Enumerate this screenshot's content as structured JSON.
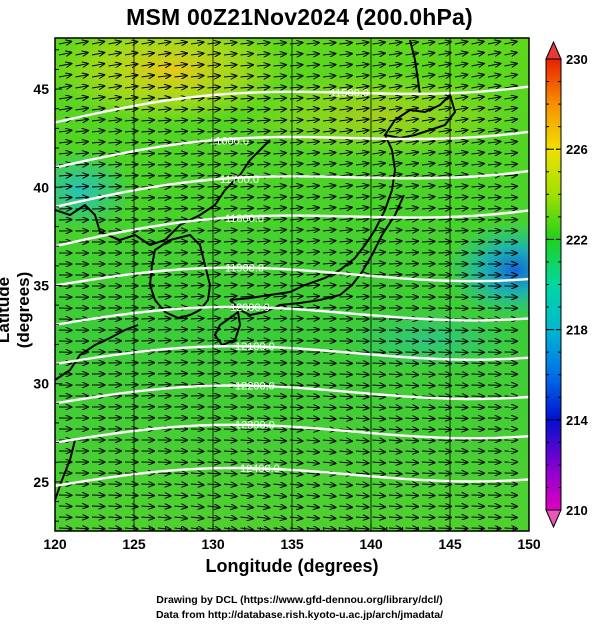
{
  "title": "MSM 00Z21Nov2024 (200.0hPa)",
  "x_axis": {
    "label": "Longitude (degrees)",
    "range": [
      120,
      150
    ],
    "ticks": [
      120,
      125,
      130,
      135,
      140,
      145,
      150
    ]
  },
  "y_axis": {
    "label": "Latitude  (degrees)",
    "range": [
      22.5,
      47.6
    ],
    "ticks": [
      25,
      30,
      35,
      40,
      45
    ]
  },
  "colorbar": {
    "range": [
      210,
      230
    ],
    "ticks": [
      210,
      214,
      218,
      222,
      226,
      230
    ]
  },
  "contours": [
    {
      "label": "11500.0",
      "lat": 43.3
    },
    {
      "label": "11600.0",
      "lat": 41.0
    },
    {
      "label": "11700.0",
      "lat": 39.0
    },
    {
      "label": "11800.0",
      "lat": 37.0
    },
    {
      "label": "11900.0",
      "lat": 35.0
    },
    {
      "label": "12000.0",
      "lat": 33.0
    },
    {
      "label": "12100.0",
      "lat": 31.0
    },
    {
      "label": "12200.0",
      "lat": 29.0
    },
    {
      "label": "12300.0",
      "lat": 27.0
    },
    {
      "label": "12400.0",
      "lat": 24.8
    }
  ],
  "credits": {
    "line1": "Drawing by DCL (https://www.gfd-dennou.org/library/dcl/)",
    "line2": "Data from http://database.rish.kyoto-u.ac.jp/arch/jmadata/"
  }
}
